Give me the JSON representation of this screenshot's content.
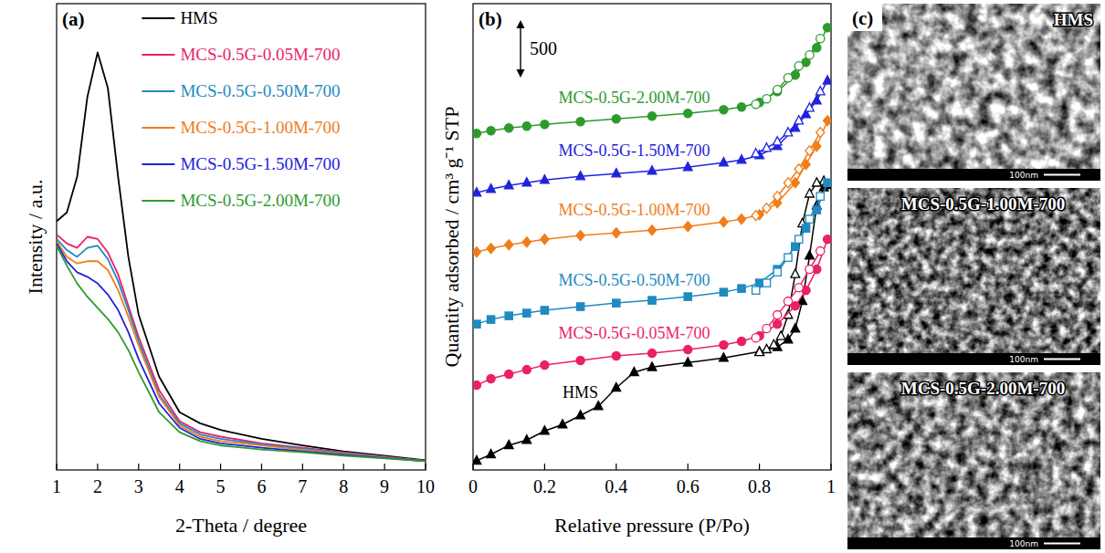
{
  "chart_data": [
    {
      "type": "line",
      "panel": "(a)",
      "x_label": "2-Theta / degree",
      "y_label": "Intensity / a.u.",
      "x": [
        1,
        1.25,
        1.5,
        1.75,
        2,
        2.25,
        2.5,
        2.75,
        3,
        3.5,
        4,
        4.5,
        5,
        6,
        7,
        8,
        9,
        10
      ],
      "xlim": [
        1,
        10
      ],
      "xticks": [
        1,
        2,
        3,
        4,
        5,
        6,
        7,
        8,
        9,
        10
      ],
      "ylim": [
        0,
        105
      ],
      "tick_labels": "x",
      "grid": false,
      "legend": "upper center",
      "series": [
        {
          "name": "HMS",
          "color": "#000000",
          "line_style": "solid",
          "values": [
            56,
            58,
            66,
            84,
            94,
            86,
            66,
            48,
            35,
            21,
            13,
            10.5,
            9,
            7,
            5.5,
            4.2,
            3.2,
            2.2
          ]
        },
        {
          "name": "MCS-0.5G-0.05M-700",
          "color": "#ea1f6a",
          "line_style": "solid",
          "values": [
            53,
            51,
            50,
            52.5,
            52,
            49,
            44,
            37,
            30,
            18,
            11,
            8.5,
            7.5,
            6,
            5,
            4,
            3,
            2
          ]
        },
        {
          "name": "MCS-0.5G-0.50M-700",
          "color": "#1f8ac0",
          "line_style": "solid",
          "values": [
            52,
            49.5,
            48,
            50,
            50.5,
            47.5,
            42.5,
            36,
            29,
            17,
            10.5,
            8,
            7,
            5.8,
            4.8,
            3.8,
            2.9,
            2
          ]
        },
        {
          "name": "MCS-0.5G-1.00M-700",
          "color": "#f07d1a",
          "line_style": "solid",
          "values": [
            51.5,
            48,
            46.5,
            47,
            47,
            45,
            40.5,
            34.5,
            28,
            16.5,
            10,
            7.5,
            6.5,
            5.5,
            4.5,
            3.6,
            2.8,
            2
          ]
        },
        {
          "name": "MCS-0.5G-1.50M-700",
          "color": "#2222dd",
          "line_style": "solid",
          "values": [
            51,
            47,
            44.5,
            43.5,
            42,
            39.5,
            36,
            31,
            25,
            15,
            9.5,
            7,
            6,
            5,
            4.2,
            3.4,
            2.7,
            2
          ]
        },
        {
          "name": "MCS-0.5G-2.00M-700",
          "color": "#2e9a2e",
          "line_style": "solid",
          "values": [
            50.5,
            46,
            42,
            39,
            36.5,
            34,
            31,
            27,
            22,
            13,
            8.5,
            6.5,
            5.5,
            4.6,
            4,
            3.2,
            2.6,
            2
          ]
        }
      ]
    },
    {
      "type": "line",
      "panel": "(b)",
      "x_label": "Relative pressure (P/Po)",
      "y_label": "Quantity adsorbed / cm³ g⁻¹ STP",
      "xlim": [
        0,
        1
      ],
      "xticks": [
        0,
        0.2,
        0.4,
        0.6,
        0.8,
        1
      ],
      "ylim": [
        0,
        4060
      ],
      "tick_labels": "x",
      "grid": false,
      "scale_bar": 500,
      "series": [
        {
          "name": "HMS",
          "color": "#000000",
          "marker": "triangle",
          "line_style": "solid",
          "x": [
            0.01,
            0.05,
            0.1,
            0.15,
            0.2,
            0.25,
            0.3,
            0.35,
            0.4,
            0.45,
            0.5,
            0.6,
            0.7,
            0.8,
            0.85,
            0.88,
            0.9,
            0.92,
            0.94,
            0.96,
            0.98,
            0.99
          ],
          "values": [
            80,
            135,
            215,
            260,
            340,
            395,
            475,
            555,
            715,
            850,
            895,
            935,
            975,
            1030,
            1070,
            1135,
            1230,
            1470,
            1865,
            2300,
            2460,
            2480
          ],
          "desorption_x": [
            0.98,
            0.96,
            0.94,
            0.92,
            0.9,
            0.88,
            0.86,
            0.84,
            0.82,
            0.8
          ],
          "desorption": [
            2515,
            2500,
            2405,
            2145,
            1705,
            1350,
            1165,
            1090,
            1050,
            1025
          ]
        },
        {
          "name": "MCS-0.5G-0.05M-700",
          "color": "#ea1f6a",
          "marker": "circle",
          "line_style": "solid",
          "x": [
            0.01,
            0.05,
            0.1,
            0.15,
            0.2,
            0.3,
            0.4,
            0.5,
            0.6,
            0.7,
            0.75,
            0.8,
            0.85,
            0.9,
            0.93,
            0.96,
            0.99
          ],
          "values": [
            738,
            794,
            834,
            873,
            913,
            953,
            993,
            1016,
            1048,
            1088,
            1120,
            1167,
            1270,
            1429,
            1564,
            1747,
            2009
          ],
          "desorption_x": [
            0.97,
            0.94,
            0.91,
            0.88,
            0.85,
            0.82,
            0.79
          ],
          "desorption": [
            1906,
            1747,
            1588,
            1469,
            1350,
            1231,
            1151
          ]
        },
        {
          "name": "MCS-0.5G-0.50M-700",
          "color": "#1f8ac0",
          "marker": "square",
          "line_style": "solid",
          "x": [
            0.01,
            0.05,
            0.1,
            0.15,
            0.2,
            0.3,
            0.4,
            0.5,
            0.6,
            0.7,
            0.75,
            0.8,
            0.85,
            0.9,
            0.93,
            0.96,
            0.99
          ],
          "values": [
            1270,
            1310,
            1342,
            1366,
            1390,
            1422,
            1453,
            1477,
            1509,
            1548,
            1580,
            1628,
            1747,
            1945,
            2104,
            2263,
            2501
          ],
          "desorption_x": [
            0.97,
            0.94,
            0.91,
            0.88,
            0.85,
            0.82,
            0.79
          ],
          "desorption": [
            2382,
            2184,
            2009,
            1850,
            1723,
            1628,
            1564
          ]
        },
        {
          "name": "MCS-0.5G-1.00M-700",
          "color": "#f07d1a",
          "marker": "diamond",
          "line_style": "solid",
          "x": [
            0.01,
            0.05,
            0.1,
            0.15,
            0.2,
            0.3,
            0.4,
            0.5,
            0.6,
            0.7,
            0.75,
            0.8,
            0.85,
            0.9,
            0.93,
            0.96,
            0.99
          ],
          "values": [
            1898,
            1929,
            1961,
            1985,
            2009,
            2041,
            2064,
            2088,
            2120,
            2160,
            2184,
            2223,
            2326,
            2501,
            2660,
            2819,
            3041
          ],
          "desorption_x": [
            0.97,
            0.94,
            0.91,
            0.88,
            0.85,
            0.82,
            0.79
          ],
          "desorption": [
            2938,
            2779,
            2620,
            2501,
            2382,
            2279,
            2215
          ]
        },
        {
          "name": "MCS-0.5G-1.50M-700",
          "color": "#2222dd",
          "marker": "triangle",
          "line_style": "solid",
          "x": [
            0.01,
            0.05,
            0.1,
            0.15,
            0.2,
            0.3,
            0.4,
            0.5,
            0.6,
            0.7,
            0.75,
            0.8,
            0.85,
            0.9,
            0.93,
            0.96,
            0.99
          ],
          "values": [
            2414,
            2446,
            2477,
            2501,
            2525,
            2557,
            2581,
            2604,
            2636,
            2676,
            2700,
            2739,
            2819,
            2978,
            3097,
            3216,
            3390
          ],
          "desorption_x": [
            0.97,
            0.94,
            0.91,
            0.88,
            0.85,
            0.82,
            0.79
          ],
          "desorption": [
            3295,
            3152,
            3041,
            2938,
            2858,
            2803,
            2755
          ]
        },
        {
          "name": "MCS-0.5G-2.00M-700",
          "color": "#2e9a2e",
          "marker": "circle",
          "line_style": "solid",
          "x": [
            0.01,
            0.05,
            0.1,
            0.15,
            0.2,
            0.3,
            0.4,
            0.5,
            0.6,
            0.7,
            0.75,
            0.8,
            0.85,
            0.9,
            0.93,
            0.96,
            0.99
          ],
          "values": [
            2930,
            2954,
            2978,
            2994,
            3009,
            3033,
            3057,
            3081,
            3105,
            3136,
            3160,
            3200,
            3295,
            3438,
            3549,
            3676,
            3851
          ],
          "desorption_x": [
            0.97,
            0.94,
            0.91,
            0.88,
            0.85,
            0.82,
            0.79
          ],
          "desorption": [
            3756,
            3613,
            3518,
            3414,
            3311,
            3232,
            3184
          ]
        }
      ]
    }
  ],
  "panel_c": {
    "panel": "(c)",
    "scale_label": "100nm",
    "images": [
      {
        "label": "HMS"
      },
      {
        "label": "MCS-0.5G-1.00M-700"
      },
      {
        "label": "MCS-0.5G-2.00M-700"
      }
    ]
  }
}
